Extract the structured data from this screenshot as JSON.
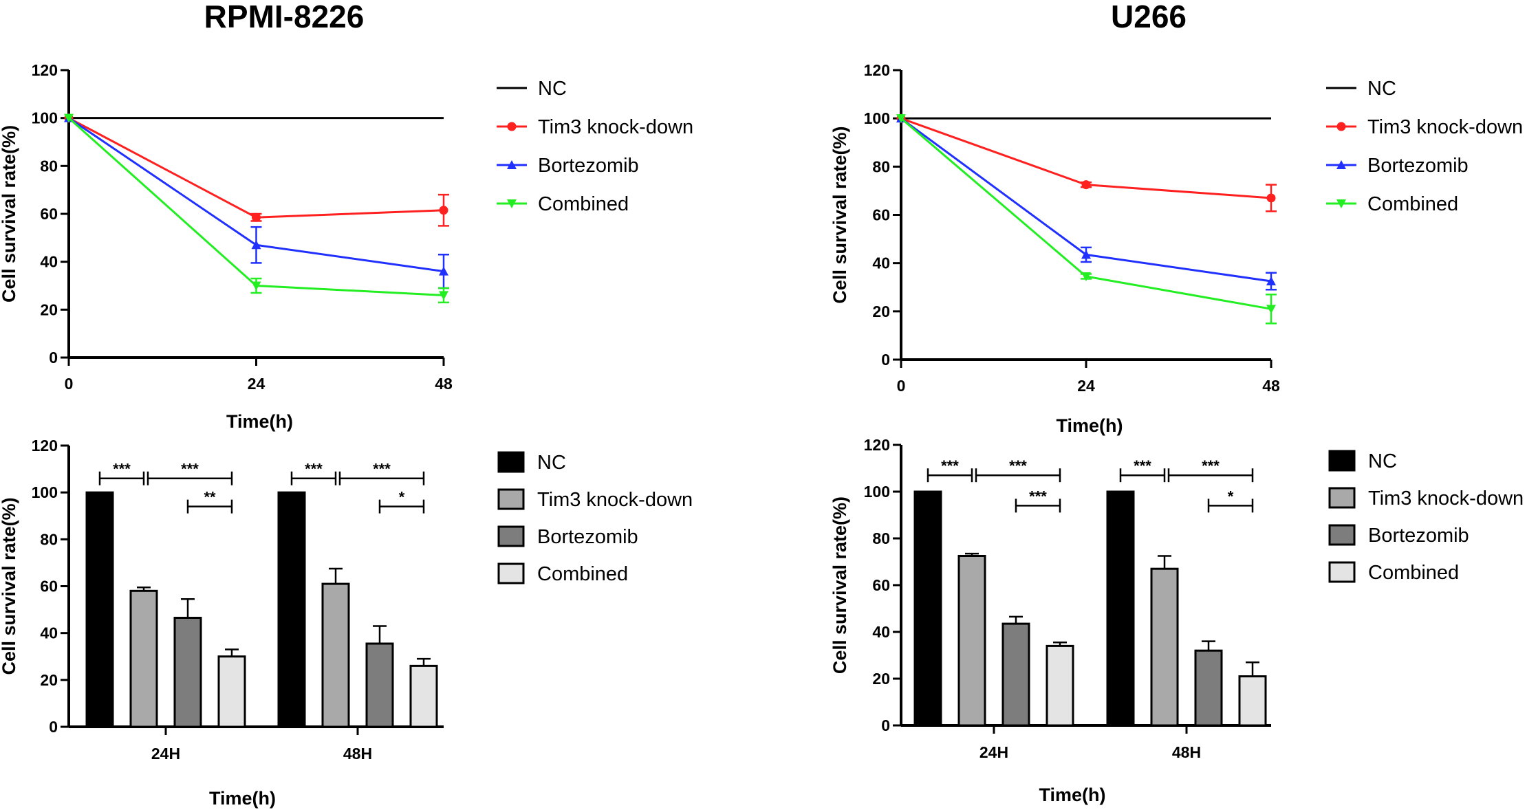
{
  "chart_data": [
    {
      "id": "line-rpmi",
      "type": "line",
      "title": "RPMI-8226",
      "xlabel": "Time(h)",
      "ylabel": "Cell survival rate(%)",
      "x": [
        0,
        24,
        48
      ],
      "xlim": [
        0,
        48
      ],
      "ylim": [
        0,
        120
      ],
      "yticks": [
        0,
        20,
        40,
        60,
        80,
        100,
        120
      ],
      "xticks": [
        0,
        24,
        48
      ],
      "series": [
        {
          "name": "NC",
          "color": "#000000",
          "marker": "none",
          "values": [
            100,
            100,
            100
          ],
          "errors": [
            0,
            0,
            0
          ]
        },
        {
          "name": "Tim3 knock-down",
          "color": "#ff2020",
          "marker": "circle",
          "values": [
            100,
            58.5,
            61.5
          ],
          "errors": [
            0,
            1.5,
            6.5
          ]
        },
        {
          "name": "Bortezomib",
          "color": "#2030ff",
          "marker": "triangle-up",
          "values": [
            100,
            47,
            36
          ],
          "errors": [
            0,
            7.5,
            7
          ]
        },
        {
          "name": "Combined",
          "color": "#22ee22",
          "marker": "triangle-down",
          "values": [
            100,
            30,
            26
          ],
          "errors": [
            0,
            3,
            3
          ]
        }
      ]
    },
    {
      "id": "line-u266",
      "type": "line",
      "title": "U266",
      "xlabel": "Time(h)",
      "ylabel": "Cell survival rate(%)",
      "x": [
        0,
        24,
        48
      ],
      "xlim": [
        0,
        48
      ],
      "ylim": [
        0,
        120
      ],
      "yticks": [
        0,
        20,
        40,
        60,
        80,
        100,
        120
      ],
      "xticks": [
        0,
        24,
        48
      ],
      "series": [
        {
          "name": "NC",
          "color": "#000000",
          "marker": "none",
          "values": [
            100,
            100,
            100
          ],
          "errors": [
            0,
            0,
            0
          ]
        },
        {
          "name": "Tim3 knock-down",
          "color": "#ff2020",
          "marker": "circle",
          "values": [
            100,
            72.5,
            67
          ],
          "errors": [
            0,
            1,
            5.5
          ]
        },
        {
          "name": "Bortezomib",
          "color": "#2030ff",
          "marker": "triangle-up",
          "values": [
            100,
            43.5,
            32.5
          ],
          "errors": [
            0,
            3,
            3.5
          ]
        },
        {
          "name": "Combined",
          "color": "#22ee22",
          "marker": "triangle-down",
          "values": [
            100,
            34.5,
            21
          ],
          "errors": [
            0,
            1,
            6
          ]
        }
      ]
    },
    {
      "id": "bar-rpmi",
      "type": "bar",
      "title": "",
      "xlabel": "Time(h)",
      "ylabel": "Cell survival rate(%)",
      "categories": [
        "24H",
        "48H"
      ],
      "ylim": [
        0,
        120
      ],
      "yticks": [
        0,
        20,
        40,
        60,
        80,
        100,
        120
      ],
      "series": [
        {
          "name": "NC",
          "color": "#000000",
          "values": [
            100,
            100
          ],
          "errors": [
            0,
            0
          ]
        },
        {
          "name": "Tim3 knock-down",
          "color": "#a9a9a9",
          "values": [
            58,
            61
          ],
          "errors": [
            1.5,
            6.5
          ]
        },
        {
          "name": "Bortezomib",
          "color": "#7d7d7d",
          "values": [
            46.5,
            35.5
          ],
          "errors": [
            8,
            7.5
          ]
        },
        {
          "name": "Combined",
          "color": "#e4e4e4",
          "values": [
            30,
            26
          ],
          "errors": [
            3,
            3
          ]
        }
      ],
      "significance": [
        {
          "group": 0,
          "from": 0,
          "to": 1,
          "label": "***",
          "level": 106
        },
        {
          "group": 0,
          "from": 1,
          "to": 3,
          "label": "***",
          "level": 106
        },
        {
          "group": 0,
          "from": 2,
          "to": 3,
          "label": "**",
          "level": 94
        },
        {
          "group": 1,
          "from": 0,
          "to": 1,
          "label": "***",
          "level": 106
        },
        {
          "group": 1,
          "from": 1,
          "to": 3,
          "label": "***",
          "level": 106
        },
        {
          "group": 1,
          "from": 2,
          "to": 3,
          "label": "*",
          "level": 94
        }
      ]
    },
    {
      "id": "bar-u266",
      "type": "bar",
      "title": "",
      "xlabel": "Time(h)",
      "ylabel": "Cell survival rate(%)",
      "categories": [
        "24H",
        "48H"
      ],
      "ylim": [
        0,
        120
      ],
      "yticks": [
        0,
        20,
        40,
        60,
        80,
        100,
        120
      ],
      "series": [
        {
          "name": "NC",
          "color": "#000000",
          "values": [
            100,
            100
          ],
          "errors": [
            0,
            0
          ]
        },
        {
          "name": "Tim3 knock-down",
          "color": "#a9a9a9",
          "values": [
            72.5,
            67
          ],
          "errors": [
            1,
            5.5
          ]
        },
        {
          "name": "Bortezomib",
          "color": "#7d7d7d",
          "values": [
            43.5,
            32
          ],
          "errors": [
            3,
            4
          ]
        },
        {
          "name": "Combined",
          "color": "#e4e4e4",
          "values": [
            34,
            21
          ],
          "errors": [
            1.5,
            6
          ]
        }
      ],
      "significance": [
        {
          "group": 0,
          "from": 0,
          "to": 1,
          "label": "***",
          "level": 107
        },
        {
          "group": 0,
          "from": 1,
          "to": 3,
          "label": "***",
          "level": 107
        },
        {
          "group": 0,
          "from": 2,
          "to": 3,
          "label": "***",
          "level": 94
        },
        {
          "group": 1,
          "from": 0,
          "to": 1,
          "label": "***",
          "level": 107
        },
        {
          "group": 1,
          "from": 1,
          "to": 3,
          "label": "***",
          "level": 107
        },
        {
          "group": 1,
          "from": 2,
          "to": 3,
          "label": "*",
          "level": 94
        }
      ]
    }
  ]
}
